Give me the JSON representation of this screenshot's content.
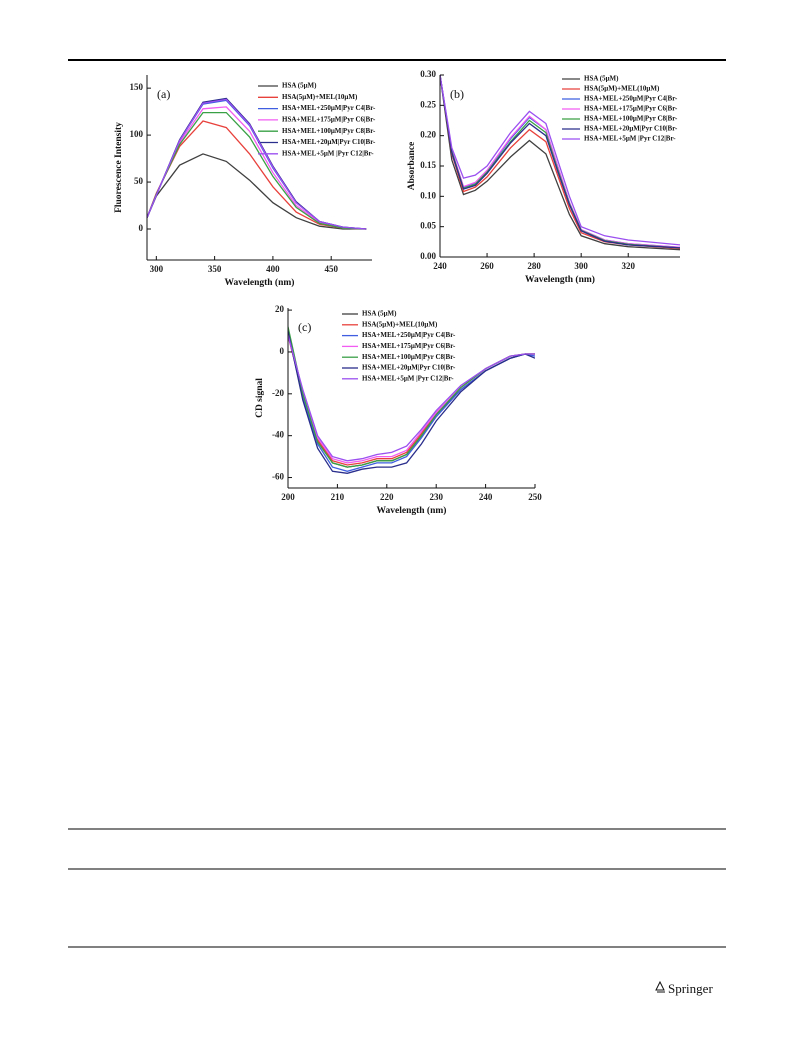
{
  "chart_data": [
    {
      "type": "line",
      "annotation": "(a)",
      "x_label": "Wavelength (nm)",
      "y_label": "Fluorescence Intensity",
      "xlim": [
        292,
        485
      ],
      "xticks": [
        300,
        350,
        400,
        450
      ],
      "ylim": [
        -33,
        164
      ],
      "yticks": [
        0,
        50,
        100,
        150
      ],
      "x": [
        292,
        300,
        320,
        340,
        360,
        380,
        400,
        420,
        440,
        460,
        480
      ],
      "series": [
        {
          "name": "HSA (5μM)",
          "color": "#404040",
          "values": [
            12,
            35,
            68,
            80,
            72,
            52,
            28,
            12,
            3,
            0,
            0
          ]
        },
        {
          "name": "HSA(5μM)+MEL(10μM)",
          "color": "#e8413c",
          "values": [
            12,
            38,
            88,
            115,
            108,
            80,
            45,
            18,
            5,
            1,
            0
          ]
        },
        {
          "name": "HSA+MEL+250μM|Pyr C4|Br-",
          "color": "#3f5fe0",
          "values": [
            12,
            36,
            94,
            133,
            137,
            110,
            65,
            28,
            8,
            2,
            0
          ]
        },
        {
          "name": "HSA+MEL+175μM|Pyr C6|Br-",
          "color": "#f25cf0",
          "values": [
            12,
            37,
            92,
            128,
            130,
            104,
            60,
            25,
            7,
            1,
            0
          ]
        },
        {
          "name": "HSA+MEL+100μM|Pyr C8|Br-",
          "color": "#3aa046",
          "values": [
            12,
            37,
            90,
            124,
            124,
            98,
            56,
            23,
            6,
            1,
            0
          ]
        },
        {
          "name": "HSA+MEL+20μM|Pyr C10|Br-",
          "color": "#2a2e8c",
          "values": [
            12,
            36,
            95,
            135,
            139,
            112,
            67,
            29,
            8,
            2,
            0
          ]
        },
        {
          "name": "HSA+MEL+5μM |Pyr C12|Br-",
          "color": "#9b4ff0",
          "values": [
            12,
            36,
            94,
            134,
            138,
            111,
            66,
            28,
            8,
            2,
            0
          ]
        }
      ]
    },
    {
      "type": "line",
      "annotation": "(b)",
      "x_label": "Wavelength (nm)",
      "y_label": "Absorbance",
      "xlim": [
        240,
        342
      ],
      "xticks": [
        240,
        260,
        280,
        300,
        320
      ],
      "ylim": [
        0,
        0.3
      ],
      "yticks": [
        {
          "value": 0,
          "label": "0.00"
        },
        0.05,
        {
          "value": 0.1,
          "label": "0.10"
        },
        0.15,
        {
          "value": 0.2,
          "label": "0.20"
        },
        0.25,
        {
          "value": 0.3,
          "label": "0.30"
        }
      ],
      "x": [
        240,
        245,
        250,
        255,
        260,
        270,
        278,
        285,
        290,
        295,
        300,
        310,
        320,
        342
      ],
      "series": [
        {
          "name": "HSA (5μM)",
          "color": "#404040",
          "values": [
            0.3,
            0.16,
            0.103,
            0.11,
            0.125,
            0.165,
            0.192,
            0.17,
            0.12,
            0.07,
            0.035,
            0.022,
            0.017,
            0.012
          ]
        },
        {
          "name": "HSA(5μM)+MEL(10μM)",
          "color": "#e8413c",
          "values": [
            0.3,
            0.17,
            0.108,
            0.115,
            0.132,
            0.18,
            0.21,
            0.19,
            0.135,
            0.08,
            0.04,
            0.025,
            0.02,
            0.014
          ]
        },
        {
          "name": "HSA+MEL+250μM|Pyr C4|Br-",
          "color": "#3f5fe0",
          "values": [
            0.3,
            0.175,
            0.115,
            0.122,
            0.142,
            0.195,
            0.23,
            0.21,
            0.15,
            0.09,
            0.045,
            0.028,
            0.022,
            0.016
          ]
        },
        {
          "name": "HSA+MEL+175μM|Pyr C6|Br-",
          "color": "#f25cf0",
          "values": [
            0.3,
            0.176,
            0.116,
            0.123,
            0.143,
            0.197,
            0.232,
            0.21,
            0.15,
            0.09,
            0.045,
            0.028,
            0.022,
            0.016
          ]
        },
        {
          "name": "HSA+MEL+100μM|Pyr C8|Br-",
          "color": "#3aa046",
          "values": [
            0.3,
            0.174,
            0.113,
            0.12,
            0.14,
            0.19,
            0.225,
            0.205,
            0.145,
            0.088,
            0.044,
            0.027,
            0.021,
            0.015
          ]
        },
        {
          "name": "HSA+MEL+20μM|Pyr C10|Br-",
          "color": "#2a2e8c",
          "values": [
            0.3,
            0.172,
            0.112,
            0.118,
            0.138,
            0.188,
            0.22,
            0.2,
            0.142,
            0.086,
            0.043,
            0.026,
            0.02,
            0.015
          ]
        },
        {
          "name": "HSA+MEL+5μM |Pyr C12|Br-",
          "color": "#9b4ff0",
          "values": [
            0.3,
            0.18,
            0.13,
            0.135,
            0.15,
            0.205,
            0.24,
            0.22,
            0.16,
            0.1,
            0.05,
            0.035,
            0.028,
            0.02
          ]
        }
      ]
    },
    {
      "type": "line",
      "annotation": "(c)",
      "x_label": "Wavelength (nm)",
      "y_label": "CD signal",
      "xlim": [
        200,
        250
      ],
      "xticks": [
        200,
        210,
        220,
        230,
        240,
        250
      ],
      "ylim": [
        -65,
        21
      ],
      "yticks": [
        -60,
        -40,
        -20,
        0,
        20
      ],
      "x": [
        200,
        203,
        206,
        209,
        212,
        215,
        218,
        221,
        224,
        227,
        230,
        235,
        240,
        245,
        248,
        250
      ],
      "series": [
        {
          "name": "HSA (5μM)",
          "color": "#404040",
          "values": [
            8,
            -20,
            -42,
            -53,
            -55,
            -54,
            -52,
            -52,
            -49,
            -40,
            -30,
            -18,
            -9,
            -3,
            -1,
            -1
          ]
        },
        {
          "name": "HSA(5μM)+MEL(10μM)",
          "color": "#e8413c",
          "values": [
            8,
            -20,
            -42,
            -52,
            -54,
            -53,
            -51,
            -51,
            -48,
            -39,
            -29,
            -17,
            -8,
            -2,
            -1,
            -1
          ]
        },
        {
          "name": "HSA+MEL+250μM|Pyr C4|Br-",
          "color": "#3f5fe0",
          "values": [
            10,
            -22,
            -44,
            -55,
            -57,
            -55,
            -53,
            -53,
            -50,
            -41,
            -31,
            -18,
            -9,
            -3,
            -1,
            -2
          ]
        },
        {
          "name": "HSA+MEL+175μM|Pyr C6|Br-",
          "color": "#f25cf0",
          "values": [
            8,
            -19,
            -41,
            -51,
            -53,
            -52,
            -50,
            -50,
            -47,
            -38,
            -29,
            -17,
            -8,
            -2,
            -1,
            -1
          ]
        },
        {
          "name": "HSA+MEL+100μM|Pyr C8|Br-",
          "color": "#3aa046",
          "values": [
            12,
            -20,
            -43,
            -53,
            -55,
            -54,
            -52,
            -52,
            -49,
            -40,
            -30,
            -17,
            -8,
            -2,
            -1,
            -1
          ]
        },
        {
          "name": "HSA+MEL+20μM|Pyr C10|Br-",
          "color": "#2a2e8c",
          "values": [
            10,
            -23,
            -46,
            -57,
            -58,
            -56,
            -55,
            -55,
            -53,
            -44,
            -33,
            -19,
            -9,
            -3,
            -1,
            -3
          ]
        },
        {
          "name": "HSA+MEL+5μM |Pyr C12|Br-",
          "color": "#9b4ff0",
          "values": [
            8,
            -18,
            -40,
            -50,
            -52,
            -51,
            -49,
            -48,
            -45,
            -37,
            -28,
            -16,
            -8,
            -2,
            -1,
            -1
          ]
        }
      ]
    }
  ],
  "footer": {
    "publisher": "Springer"
  }
}
